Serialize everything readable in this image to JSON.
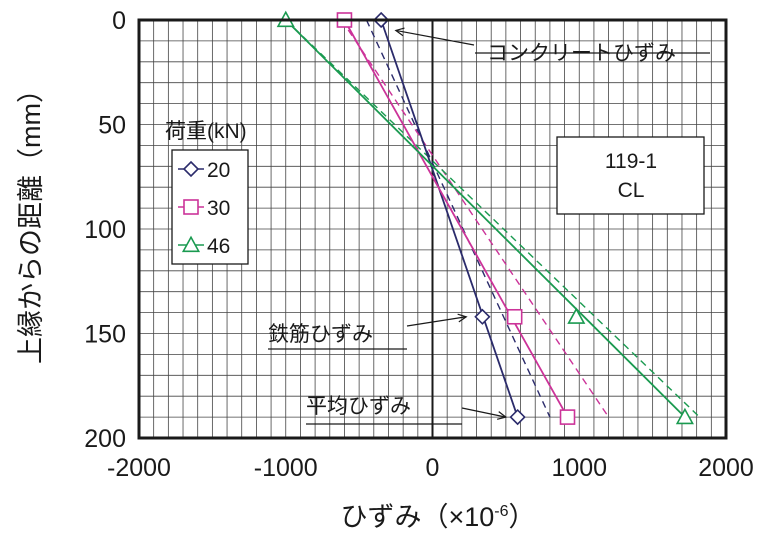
{
  "chart_data": {
    "type": "line",
    "xlabel": "ひずみ（×10",
    "xlabel_sup": "-6",
    "xlabel_end": "）",
    "ylabel": "上縁からの距離（mm）",
    "xlim": [
      -2000,
      2000
    ],
    "ylim": [
      0,
      200
    ],
    "y_inverted": true,
    "grid": true,
    "x_ticks": [
      "-2000",
      "-1000",
      "0",
      "1000",
      "2000"
    ],
    "y_ticks": [
      "0",
      "50",
      "100",
      "150",
      "200"
    ],
    "legend": {
      "title": "荷重(kN)",
      "placement": "left",
      "entries": [
        "20",
        "30",
        "46"
      ]
    },
    "series": [
      {
        "name": "20",
        "color": "#2b2b6b",
        "marker": "diamond",
        "concrete_strain": {
          "x": -350,
          "y": 0
        },
        "rebar_strain": {
          "x": 340,
          "y": 142
        },
        "solid_line": [
          {
            "x": -350,
            "y": 0
          },
          {
            "x": 580,
            "y": 190
          }
        ],
        "mean_point": {
          "x": 580,
          "y": 190
        },
        "mean_line": [
          {
            "x": -450,
            "y": 0
          },
          {
            "x": 800,
            "y": 190
          }
        ]
      },
      {
        "name": "30",
        "color": "#cc3399",
        "marker": "square",
        "concrete_strain": {
          "x": -600,
          "y": 0
        },
        "rebar_strain": {
          "x": 560,
          "y": 142
        },
        "solid_line": [
          {
            "x": -600,
            "y": 0
          },
          {
            "x": 920,
            "y": 190
          }
        ],
        "mean_point": {
          "x": 920,
          "y": 190
        },
        "mean_line": [
          {
            "x": -620,
            "y": 0
          },
          {
            "x": 1200,
            "y": 190
          }
        ]
      },
      {
        "name": "46",
        "color": "#1a9a50",
        "marker": "triangle",
        "concrete_strain": {
          "x": -1000,
          "y": 0
        },
        "rebar_strain": {
          "x": 980,
          "y": 142
        },
        "solid_line": [
          {
            "x": -1000,
            "y": 0
          },
          {
            "x": 1720,
            "y": 190
          }
        ],
        "mean_point": {
          "x": 1720,
          "y": 190
        },
        "mean_line": [
          {
            "x": -1000,
            "y": 0
          },
          {
            "x": 1820,
            "y": 190
          }
        ]
      }
    ],
    "annotations": [
      {
        "text": "コンクリートひずみ",
        "target": {
          "x": -250,
          "y": 5
        }
      },
      {
        "text": "鉄筋ひずみ",
        "target": {
          "x": 230,
          "y": 142
        }
      },
      {
        "text": "平均ひずみ",
        "target": {
          "x": 500,
          "y": 190
        }
      }
    ],
    "specimen_label": [
      "119-1",
      "CL"
    ]
  }
}
